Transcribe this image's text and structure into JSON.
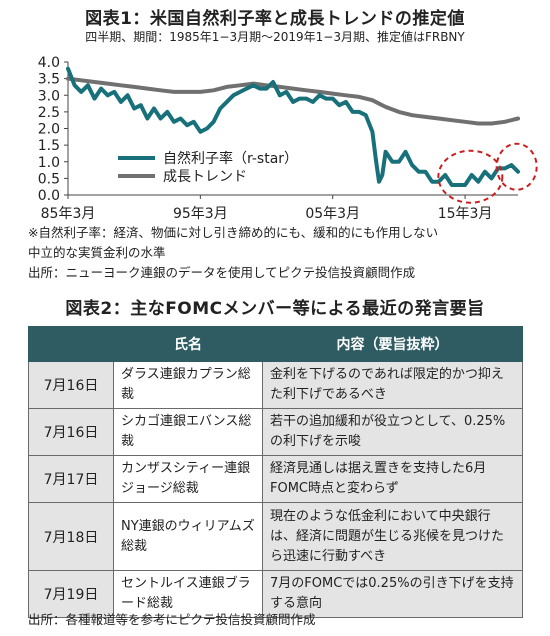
{
  "chart1_title": "図表1：米国自然利子率と成長トレンドの推定値",
  "chart1_subtitle": "四半期、期間：1985年1−3月期〜2019年1−3月期、推定値はFRBNY",
  "chart_data": [
    {
      "type": "line",
      "ylim": [
        0,
        4.0
      ],
      "yticks": [
        "0.0",
        "0.5",
        "1.0",
        "1.5",
        "2.0",
        "2.5",
        "3.0",
        "3.5",
        "4.0"
      ],
      "xtick_labels": [
        "85年3月",
        "95年3月",
        "05年3月",
        "15年3月"
      ],
      "xtick_values": [
        1985,
        1995,
        2005,
        2015
      ],
      "xlim": [
        1985,
        2019
      ],
      "grid": false,
      "legend_position": "center-left",
      "series": [
        {
          "name": "自然利子率（r-star）",
          "color": "#17707a",
          "x": [
            1985,
            1985.5,
            1986,
            1986.5,
            1987,
            1987.5,
            1988,
            1988.5,
            1989,
            1989.5,
            1990,
            1990.5,
            1991,
            1991.5,
            1992,
            1992.5,
            1993,
            1993.5,
            1994,
            1994.5,
            1995,
            1995.5,
            1996,
            1996.5,
            1997,
            1997.5,
            1998,
            1998.5,
            1999,
            1999.5,
            2000,
            2000.5,
            2001,
            2001.5,
            2002,
            2002.5,
            2003,
            2003.5,
            2004,
            2004.5,
            2005,
            2005.5,
            2006,
            2006.5,
            2007,
            2007.5,
            2008,
            2008.25,
            2008.5,
            2008.75,
            2009,
            2009.5,
            2010,
            2010.5,
            2011,
            2011.5,
            2012,
            2012.5,
            2013,
            2013.5,
            2014,
            2014.5,
            2015,
            2015.5,
            2016,
            2016.5,
            2017,
            2017.5,
            2018,
            2018.5,
            2019
          ],
          "values": [
            3.8,
            3.3,
            3.1,
            3.3,
            2.9,
            3.2,
            3.0,
            3.1,
            2.8,
            3.0,
            2.6,
            2.7,
            2.3,
            2.6,
            2.3,
            2.5,
            2.2,
            2.3,
            2.1,
            2.2,
            1.9,
            2.0,
            2.2,
            2.6,
            2.8,
            3.0,
            3.1,
            3.2,
            3.3,
            3.2,
            3.2,
            3.4,
            3.0,
            3.1,
            2.8,
            2.9,
            2.9,
            2.8,
            3.0,
            2.9,
            2.9,
            2.7,
            2.8,
            2.5,
            2.5,
            2.4,
            1.9,
            1.1,
            0.4,
            0.6,
            1.3,
            1.0,
            1.0,
            1.3,
            0.9,
            0.7,
            0.7,
            0.4,
            0.4,
            0.6,
            0.3,
            0.3,
            0.3,
            0.6,
            0.4,
            0.7,
            0.5,
            0.8,
            0.8,
            0.9,
            0.7
          ]
        },
        {
          "name": "成長トレンド",
          "color": "#707070",
          "x": [
            1985,
            1986,
            1987,
            1988,
            1989,
            1990,
            1991,
            1992,
            1993,
            1994,
            1995,
            1996,
            1997,
            1998,
            1999,
            2000,
            2001,
            2002,
            2003,
            2004,
            2005,
            2006,
            2007,
            2008,
            2009,
            2010,
            2011,
            2012,
            2013,
            2014,
            2015,
            2016,
            2017,
            2018,
            2019
          ],
          "values": [
            3.5,
            3.45,
            3.4,
            3.35,
            3.3,
            3.25,
            3.2,
            3.15,
            3.1,
            3.1,
            3.1,
            3.15,
            3.25,
            3.3,
            3.35,
            3.3,
            3.25,
            3.2,
            3.15,
            3.1,
            3.05,
            3.0,
            2.95,
            2.85,
            2.65,
            2.5,
            2.4,
            2.35,
            2.3,
            2.25,
            2.2,
            2.15,
            2.15,
            2.2,
            2.3
          ]
        }
      ]
    }
  ],
  "chart1_note1": "※自然利子率：経済、物価に対し引き締め的にも、緩和的にも作用しない",
  "chart1_note2": "中立的な実質金利の水準",
  "chart1_source": "出所：ニューヨーク連銀のデータを使用してピクテ投信投資顧問作成",
  "table_title": "図表2：主なFOMCメンバー等による最近の発言要旨",
  "table_headers": [
    "氏名",
    "内容（要旨抜粋）"
  ],
  "table_rows": [
    {
      "date": "7月16日",
      "name": "ダラス連銀カプラン総裁",
      "content": "金利を下げるのであれば限定的かつ抑えた利下げであるべき"
    },
    {
      "date": "7月16日",
      "name": "シカゴ連銀エバンス総裁",
      "content": "若干の追加緩和が役立つとして、0.25%の利下げを示唆"
    },
    {
      "date": "7月17日",
      "name": "カンザスシティー連銀ジョージ総裁",
      "content": "経済見通しは据え置きを支持した6月FOMC時点と変わらず"
    },
    {
      "date": "7月18日",
      "name": "NY連銀のウィリアムズ総裁",
      "content": "現在のような低金利において中央銀行は、経済に問題が生じる兆候を見つけたら迅速に行動すべき"
    },
    {
      "date": "7月19日",
      "name": "セントルイス連銀ブラード総裁",
      "content": "7月のFOMCでは0.25%の引き下げを支持する意向"
    }
  ],
  "table_source": "出所：各種報道等を参考にピクテ投信投資顧問作成"
}
